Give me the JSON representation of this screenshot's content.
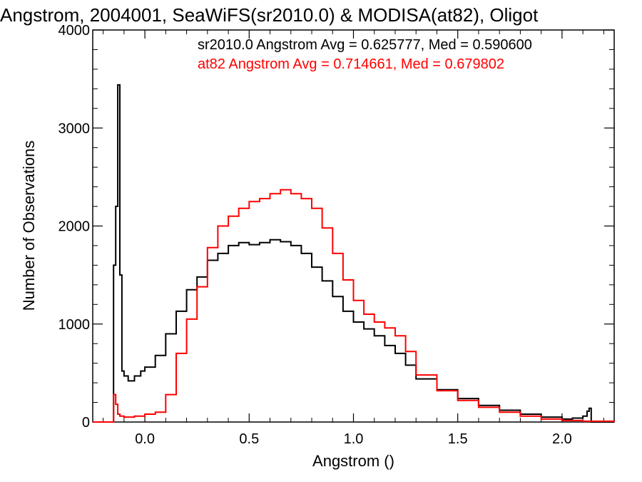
{
  "chart_data": {
    "type": "line",
    "title": "Angstrom, 2004001, SeaWiFS(sr2010.0) & MODISA(at82), Oligot",
    "xlabel": "Angstrom ()",
    "ylabel": "Number of Observations",
    "xlim": [
      -0.25,
      2.25
    ],
    "ylim": [
      0,
      4000
    ],
    "xticks": [
      0.0,
      0.5,
      1.0,
      1.5,
      2.0
    ],
    "xtick_labels": [
      "0.0",
      "0.5",
      "1.0",
      "1.5",
      "2.0"
    ],
    "yticks": [
      0,
      1000,
      2000,
      3000,
      4000
    ],
    "ytick_labels": [
      "0",
      "1000",
      "2000",
      "3000",
      "4000"
    ],
    "grid": false,
    "annotations": [
      {
        "text": "sr2010.0 Angstrom Avg = 0.625777, Med = 0.590600",
        "color": "#000000"
      },
      {
        "text": "at82 Angstrom Avg = 0.714661, Med = 0.679802",
        "color": "#ff0000"
      }
    ],
    "series": [
      {
        "color": "#000000",
        "x": [
          -0.25,
          -0.16,
          -0.15,
          -0.14,
          -0.13,
          -0.12,
          -0.11,
          -0.1,
          -0.08,
          -0.05,
          -0.02,
          0.0,
          0.05,
          0.1,
          0.15,
          0.2,
          0.25,
          0.3,
          0.35,
          0.4,
          0.45,
          0.5,
          0.55,
          0.6,
          0.65,
          0.7,
          0.75,
          0.8,
          0.85,
          0.9,
          0.95,
          1.0,
          1.05,
          1.1,
          1.15,
          1.2,
          1.25,
          1.3,
          1.4,
          1.5,
          1.6,
          1.7,
          1.8,
          1.9,
          2.0,
          2.05,
          2.1,
          2.12,
          2.13,
          2.14,
          2.25
        ],
        "y": [
          0,
          0,
          1600,
          2200,
          3440,
          1500,
          520,
          470,
          420,
          470,
          520,
          560,
          680,
          900,
          1130,
          1350,
          1480,
          1650,
          1720,
          1800,
          1830,
          1810,
          1830,
          1860,
          1840,
          1800,
          1720,
          1580,
          1440,
          1280,
          1130,
          1020,
          950,
          880,
          780,
          700,
          580,
          440,
          330,
          240,
          170,
          120,
          80,
          50,
          30,
          40,
          60,
          110,
          140,
          0,
          0
        ]
      },
      {
        "color": "#ff0000",
        "x": [
          -0.25,
          -0.16,
          -0.15,
          -0.14,
          -0.13,
          -0.12,
          -0.1,
          -0.05,
          0.0,
          0.05,
          0.1,
          0.15,
          0.2,
          0.25,
          0.3,
          0.35,
          0.4,
          0.45,
          0.5,
          0.55,
          0.6,
          0.65,
          0.7,
          0.75,
          0.8,
          0.85,
          0.9,
          0.95,
          1.0,
          1.05,
          1.1,
          1.15,
          1.2,
          1.25,
          1.3,
          1.4,
          1.5,
          1.6,
          1.7,
          1.8,
          1.9,
          2.0,
          2.1,
          2.25
        ],
        "y": [
          0,
          0,
          280,
          180,
          80,
          60,
          50,
          60,
          80,
          100,
          280,
          700,
          1050,
          1380,
          1780,
          2000,
          2100,
          2180,
          2250,
          2280,
          2330,
          2370,
          2330,
          2280,
          2180,
          1980,
          1720,
          1450,
          1240,
          1100,
          1020,
          960,
          880,
          720,
          480,
          320,
          220,
          150,
          100,
          60,
          30,
          15,
          8,
          0
        ]
      }
    ]
  }
}
